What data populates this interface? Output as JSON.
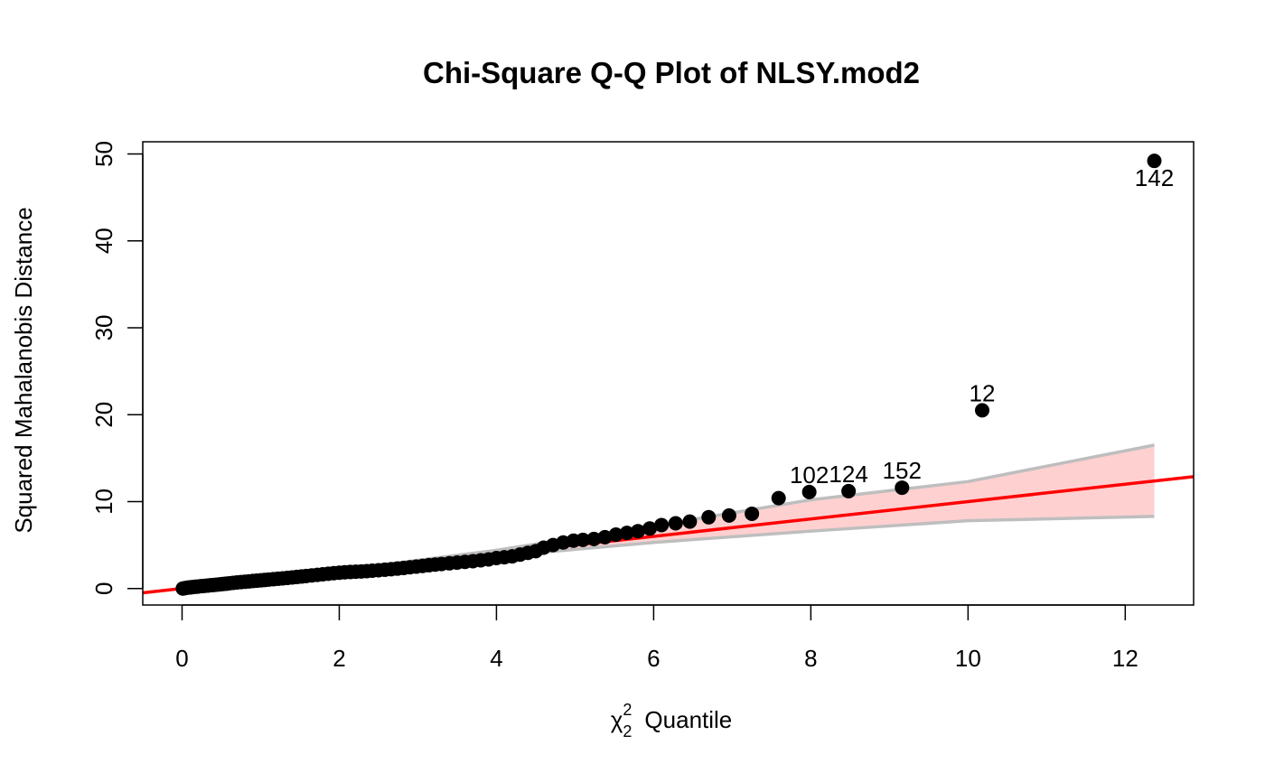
{
  "chart_data": {
    "type": "scatter",
    "title": "Chi-Square Q-Q Plot of NLSY.mod2",
    "xlabel": {
      "symbol": "χ",
      "sup": "2",
      "sub": "2",
      "text": "Quantile"
    },
    "ylabel": "Squared Mahalanobis Distance",
    "xlim": [
      -0.5,
      12.87
    ],
    "ylim": [
      -1.9,
      51.4
    ],
    "xticks": [
      0,
      2,
      4,
      6,
      8,
      10,
      12
    ],
    "yticks": [
      0,
      10,
      20,
      30,
      40,
      50
    ],
    "reference_line": {
      "intercept": 0,
      "slope": 1,
      "color": "#ff0000"
    },
    "envelope": {
      "color": "#ffd0d0",
      "border_color": "#bebebe",
      "upper": [
        [
          0,
          0
        ],
        [
          2,
          2.1
        ],
        [
          4,
          4.4
        ],
        [
          6,
          7.2
        ],
        [
          8,
          10.2
        ],
        [
          10,
          12.3
        ],
        [
          12.37,
          16.5
        ]
      ],
      "lower": [
        [
          0,
          0
        ],
        [
          2,
          1.9
        ],
        [
          4,
          3.7
        ],
        [
          6,
          5.3
        ],
        [
          8,
          6.6
        ],
        [
          10,
          7.8
        ],
        [
          12.37,
          8.3
        ]
      ]
    },
    "point_color": "#000000",
    "points": [
      [
        0.01,
        0.0
      ],
      [
        0.04,
        0.05
      ],
      [
        0.07,
        0.1
      ],
      [
        0.1,
        0.12
      ],
      [
        0.13,
        0.16
      ],
      [
        0.17,
        0.2
      ],
      [
        0.2,
        0.22
      ],
      [
        0.24,
        0.27
      ],
      [
        0.28,
        0.3
      ],
      [
        0.32,
        0.33
      ],
      [
        0.36,
        0.37
      ],
      [
        0.4,
        0.4
      ],
      [
        0.44,
        0.44
      ],
      [
        0.48,
        0.48
      ],
      [
        0.52,
        0.52
      ],
      [
        0.56,
        0.55
      ],
      [
        0.6,
        0.6
      ],
      [
        0.65,
        0.65
      ],
      [
        0.7,
        0.7
      ],
      [
        0.75,
        0.74
      ],
      [
        0.8,
        0.78
      ],
      [
        0.85,
        0.82
      ],
      [
        0.9,
        0.86
      ],
      [
        0.95,
        0.9
      ],
      [
        1.0,
        0.94
      ],
      [
        1.05,
        0.98
      ],
      [
        1.1,
        1.02
      ],
      [
        1.16,
        1.07
      ],
      [
        1.22,
        1.12
      ],
      [
        1.28,
        1.17
      ],
      [
        1.34,
        1.22
      ],
      [
        1.4,
        1.27
      ],
      [
        1.46,
        1.33
      ],
      [
        1.52,
        1.38
      ],
      [
        1.58,
        1.44
      ],
      [
        1.65,
        1.5
      ],
      [
        1.72,
        1.57
      ],
      [
        1.79,
        1.63
      ],
      [
        1.86,
        1.7
      ],
      [
        1.93,
        1.76
      ],
      [
        2.0,
        1.82
      ],
      [
        2.07,
        1.87
      ],
      [
        2.14,
        1.9
      ],
      [
        2.21,
        1.93
      ],
      [
        2.28,
        1.96
      ],
      [
        2.35,
        2.0
      ],
      [
        2.42,
        2.05
      ],
      [
        2.5,
        2.1
      ],
      [
        2.58,
        2.16
      ],
      [
        2.66,
        2.22
      ],
      [
        2.74,
        2.29
      ],
      [
        2.82,
        2.36
      ],
      [
        2.9,
        2.44
      ],
      [
        2.98,
        2.52
      ],
      [
        3.06,
        2.6
      ],
      [
        3.14,
        2.68
      ],
      [
        3.22,
        2.75
      ],
      [
        3.3,
        2.82
      ],
      [
        3.4,
        2.9
      ],
      [
        3.5,
        2.98
      ],
      [
        3.6,
        3.06
      ],
      [
        3.7,
        3.14
      ],
      [
        3.8,
        3.24
      ],
      [
        3.9,
        3.35
      ],
      [
        4.0,
        3.5
      ],
      [
        4.1,
        3.6
      ],
      [
        4.2,
        3.7
      ],
      [
        4.3,
        3.9
      ],
      [
        4.4,
        4.1
      ],
      [
        4.5,
        4.3
      ],
      [
        4.6,
        4.7
      ],
      [
        4.72,
        5.0
      ],
      [
        4.85,
        5.3
      ],
      [
        4.98,
        5.5
      ],
      [
        5.1,
        5.6
      ],
      [
        5.24,
        5.7
      ],
      [
        5.38,
        5.9
      ],
      [
        5.52,
        6.2
      ],
      [
        5.66,
        6.4
      ],
      [
        5.8,
        6.6
      ],
      [
        5.95,
        6.9
      ],
      [
        6.1,
        7.3
      ],
      [
        6.28,
        7.5
      ],
      [
        6.46,
        7.7
      ],
      [
        6.7,
        8.2
      ],
      [
        6.96,
        8.4
      ],
      [
        7.25,
        8.6
      ],
      [
        7.59,
        10.4
      ],
      [
        7.98,
        11.1
      ],
      [
        8.48,
        11.2
      ],
      [
        9.16,
        11.6
      ],
      [
        10.18,
        20.5
      ],
      [
        12.37,
        49.2
      ]
    ],
    "labeled_points": [
      {
        "label": "142",
        "x": 12.37,
        "y": 49.2,
        "position": "below"
      },
      {
        "label": "12",
        "x": 10.18,
        "y": 20.5,
        "position": "above"
      },
      {
        "label": "102",
        "x": 7.98,
        "y": 11.1,
        "position": "above"
      },
      {
        "label": "124",
        "x": 8.48,
        "y": 11.2,
        "position": "above"
      },
      {
        "label": "152",
        "x": 9.16,
        "y": 11.6,
        "position": "above"
      }
    ]
  }
}
